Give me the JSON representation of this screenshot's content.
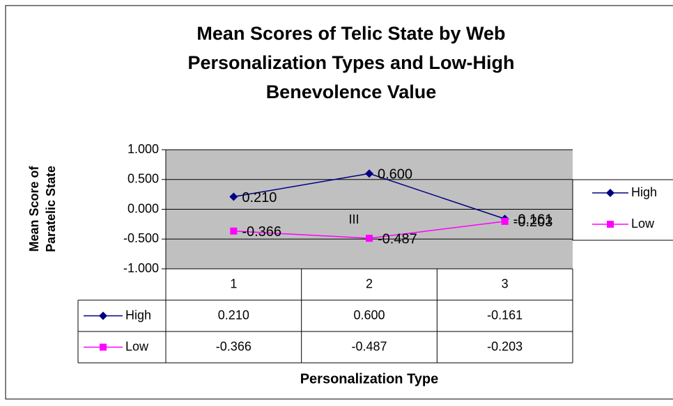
{
  "chart_data": {
    "type": "line",
    "title": [
      "Mean Scores of Telic State by Web",
      "Personalization Types and Low-High",
      "Benevolence Value"
    ],
    "ylabel": [
      "Mean Score of",
      "Paratelic State"
    ],
    "xlabel": "Personalization Type",
    "annotation": "III",
    "categories": [
      "1",
      "2",
      "3"
    ],
    "series": [
      {
        "name": "High",
        "color": "#000080",
        "marker": "diamond",
        "values": [
          0.21,
          0.6,
          -0.161
        ],
        "value_labels": [
          "0.210",
          "0.600",
          "-0.161"
        ]
      },
      {
        "name": "Low",
        "color": "#ff00ff",
        "marker": "square",
        "values": [
          -0.366,
          -0.487,
          -0.203
        ],
        "value_labels": [
          "-0.366",
          "-0.487",
          "-0.203"
        ]
      }
    ],
    "ylim": [
      -1,
      1
    ],
    "yticks": [
      {
        "value": -1,
        "label": "-1.000"
      },
      {
        "value": -0.5,
        "label": "-0.500"
      },
      {
        "value": 0,
        "label": "0.000"
      },
      {
        "value": 0.5,
        "label": "0.500"
      },
      {
        "value": 1,
        "label": "1.000"
      }
    ],
    "grid": true,
    "legend": "right",
    "data_table": true
  }
}
